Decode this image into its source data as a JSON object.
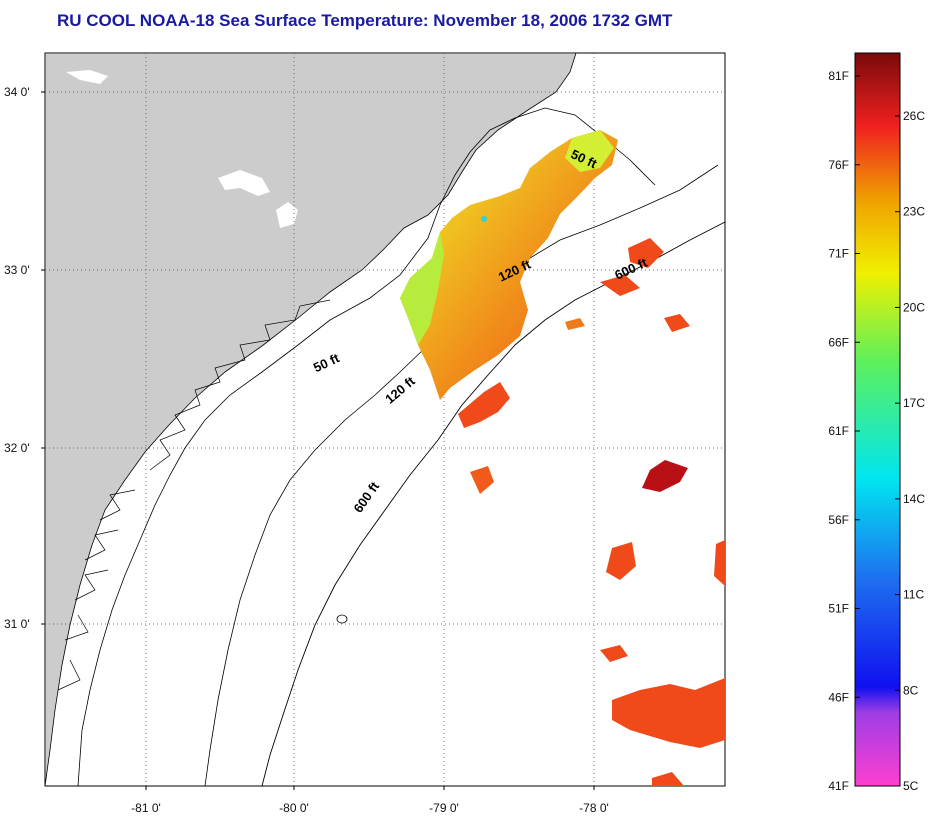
{
  "title": "RU COOL  NOAA-18  Sea Surface Temperature:  November 18, 2006 1732 GMT",
  "map": {
    "lat_labels": [
      "34 0'",
      "33 0'",
      "32 0'",
      "31 0'"
    ],
    "lon_labels": [
      "-81 0'",
      "-80 0'",
      "-79 0'",
      "-78 0'"
    ],
    "depth_labels": [
      {
        "text": "50 ft",
        "lon": -78.08,
        "lat": 33.6
      },
      {
        "text": "50 ft",
        "lon": -79.78,
        "lat": 32.45
      },
      {
        "text": "120 ft",
        "lon": -78.52,
        "lat": 32.97
      },
      {
        "text": "120 ft",
        "lon": -79.28,
        "lat": 32.3
      },
      {
        "text": "600 ft",
        "lon": -77.74,
        "lat": 32.98
      },
      {
        "text": "600 ft",
        "lon": -79.5,
        "lat": 31.7
      }
    ]
  },
  "colorbar": {
    "fahrenheit": [
      "81F",
      "76F",
      "71F",
      "66F",
      "61F",
      "56F",
      "51F",
      "46F",
      "41F"
    ],
    "celsius": [
      "26C",
      "23C",
      "20C",
      "17C",
      "14C",
      "11C",
      "8C",
      "5C"
    ]
  },
  "colors": {
    "land": "#cccccc",
    "title": "#1a1aa0",
    "warm": "#f03a1a",
    "hot": "#b81014"
  }
}
